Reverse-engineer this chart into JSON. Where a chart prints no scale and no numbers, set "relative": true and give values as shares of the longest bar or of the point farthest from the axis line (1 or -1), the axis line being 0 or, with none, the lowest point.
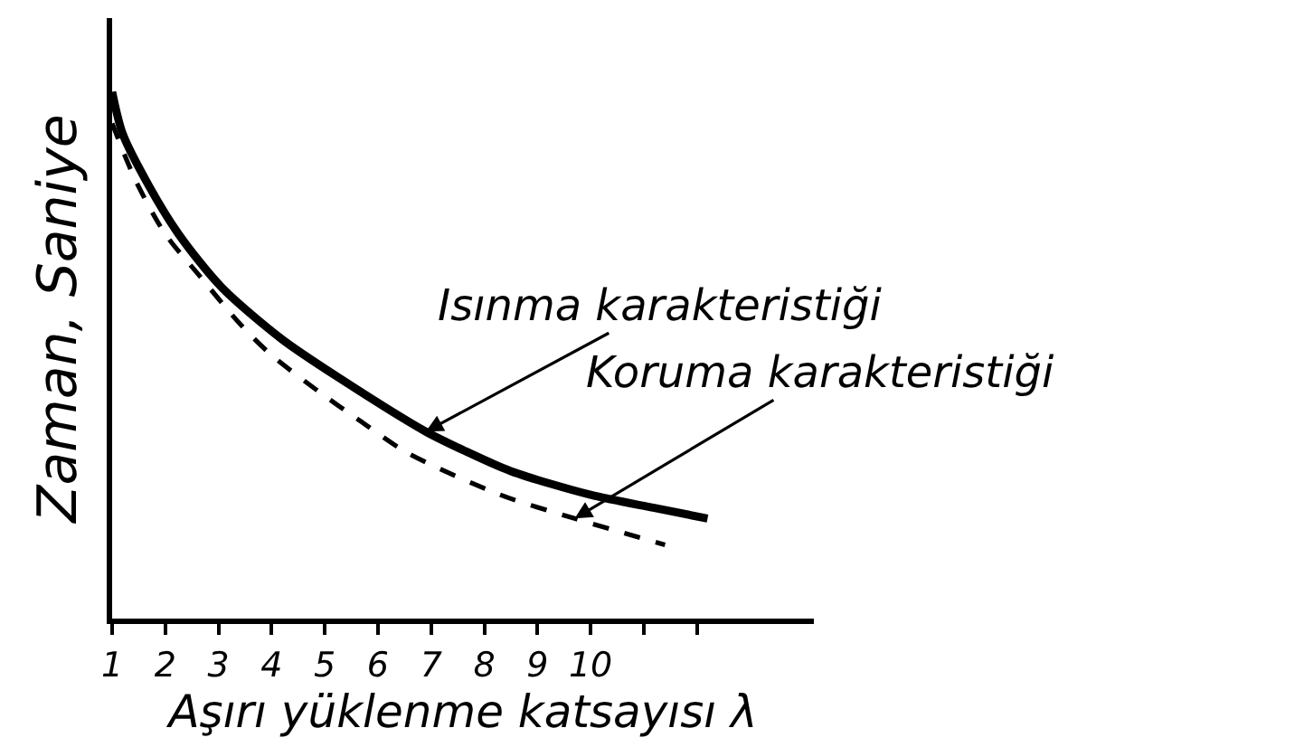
{
  "chart_data": {
    "type": "line",
    "relative": true,
    "xlabel": "Aşırı yüklenme katsayısı λ",
    "ylabel": "Zaman, Saniye",
    "xlim": [
      1,
      14.2
    ],
    "xticks": [
      1,
      2,
      3,
      4,
      5,
      6,
      7,
      8,
      9,
      10,
      {
        "value": 11,
        "label": null
      },
      {
        "value": 12,
        "label": null
      }
    ],
    "series": [
      {
        "name": "Isınma karakteristiği",
        "color": "#000000",
        "line_style": "solid",
        "x": [
          1,
          1.2,
          1.7,
          2.25,
          3.05,
          4.2,
          5.3,
          6.9,
          7.6,
          8.5,
          10,
          11.2,
          12.2
        ],
        "values": [
          1,
          0.92,
          0.82,
          0.73,
          0.63,
          0.53,
          0.455,
          0.355,
          0.32,
          0.28,
          0.235,
          0.21,
          0.19
        ]
      },
      {
        "name": "Koruma karakteristiği",
        "color": "#000000",
        "line_style": "dashed",
        "x": [
          1,
          1.45,
          2,
          2.65,
          3.4,
          4,
          4.9,
          5.6,
          6.55,
          8.3,
          9.7,
          11.4
        ],
        "values": [
          0.94,
          0.83,
          0.73,
          0.65,
          0.56,
          0.5,
          0.43,
          0.38,
          0.315,
          0.235,
          0.19,
          0.14
        ]
      }
    ]
  }
}
